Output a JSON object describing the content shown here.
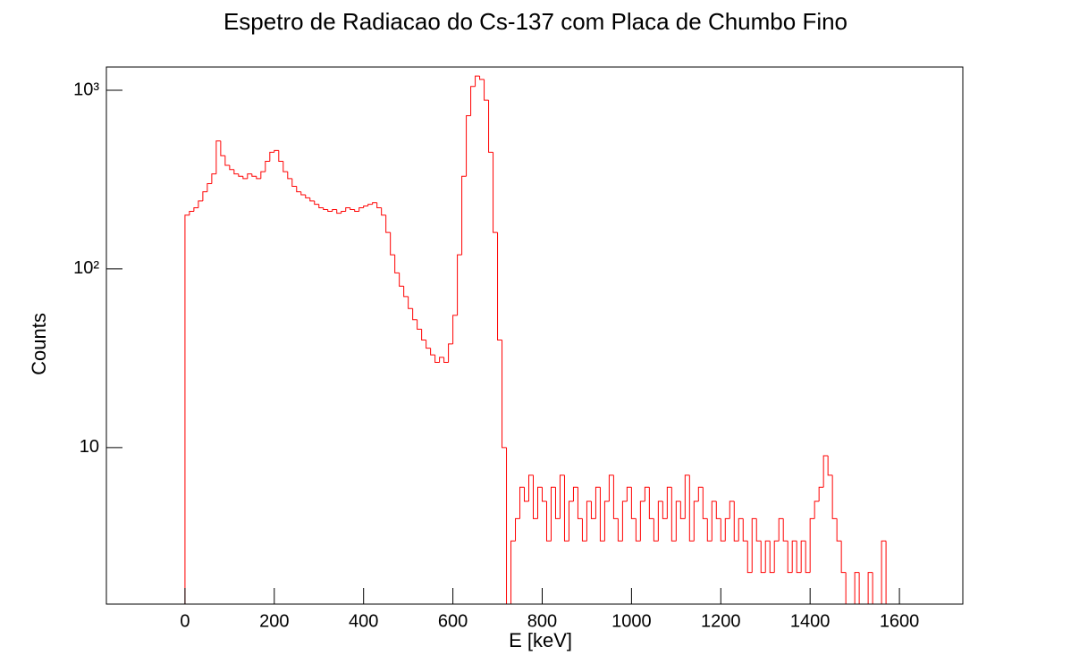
{
  "chart_data": {
    "type": "histogram",
    "title": "Espetro de Radiacao do Cs-137 com Placa de Chumbo Fino",
    "xlabel": "E [keV]",
    "ylabel": "Counts",
    "color": "#ff0000",
    "log_y": true,
    "xlim": [
      -176,
      1742
    ],
    "ylim": [
      1.33,
      1349
    ],
    "xticks": [
      0,
      200,
      400,
      600,
      800,
      1000,
      1200,
      1400,
      1600
    ],
    "yticks": [
      10,
      {
        "value": 100,
        "label": "10²"
      },
      {
        "value": 1000,
        "label": "10³"
      }
    ],
    "bins": [
      0,
      10,
      20,
      30,
      40,
      50,
      60,
      70,
      80,
      90,
      100,
      110,
      120,
      130,
      140,
      150,
      160,
      170,
      180,
      190,
      200,
      210,
      220,
      230,
      240,
      250,
      260,
      270,
      280,
      290,
      300,
      310,
      320,
      330,
      340,
      350,
      360,
      370,
      380,
      390,
      400,
      410,
      420,
      430,
      440,
      450,
      460,
      470,
      480,
      490,
      500,
      510,
      520,
      530,
      540,
      550,
      560,
      570,
      580,
      590,
      600,
      610,
      620,
      630,
      640,
      650,
      660,
      670,
      680,
      690,
      700,
      710,
      720,
      730,
      740,
      750,
      760,
      770,
      780,
      790,
      800,
      810,
      820,
      830,
      840,
      850,
      860,
      870,
      880,
      890,
      900,
      910,
      920,
      930,
      940,
      950,
      960,
      970,
      980,
      990,
      1000,
      1010,
      1020,
      1030,
      1040,
      1050,
      1060,
      1070,
      1080,
      1090,
      1100,
      1110,
      1120,
      1130,
      1140,
      1150,
      1160,
      1170,
      1180,
      1190,
      1200,
      1210,
      1220,
      1230,
      1240,
      1250,
      1260,
      1270,
      1280,
      1290,
      1300,
      1310,
      1320,
      1330,
      1340,
      1350,
      1360,
      1370,
      1380,
      1390,
      1400,
      1410,
      1420,
      1430,
      1440,
      1450,
      1460,
      1470,
      1480,
      1490,
      1500,
      1510,
      1520,
      1530,
      1540,
      1550,
      1560,
      1570,
      1580,
      1590,
      1600
    ],
    "values": [
      200,
      210,
      220,
      240,
      270,
      300,
      340,
      520,
      430,
      380,
      360,
      340,
      330,
      320,
      340,
      330,
      320,
      350,
      400,
      450,
      460,
      400,
      350,
      320,
      290,
      270,
      260,
      250,
      240,
      230,
      220,
      215,
      210,
      215,
      205,
      210,
      220,
      215,
      210,
      220,
      225,
      230,
      235,
      220,
      200,
      160,
      120,
      95,
      80,
      70,
      60,
      52,
      46,
      40,
      36,
      33,
      30,
      32,
      30,
      38,
      55,
      120,
      330,
      720,
      1050,
      1200,
      1150,
      880,
      450,
      160,
      40,
      10,
      1,
      3,
      4,
      6,
      5,
      7,
      4,
      6,
      5,
      3,
      6,
      4,
      7,
      3,
      5,
      6,
      4,
      3,
      5,
      4,
      6,
      3,
      5,
      7,
      4,
      3,
      5,
      6,
      4,
      3,
      5,
      6,
      4,
      3,
      5,
      4,
      6,
      3,
      5,
      4,
      7,
      3,
      5,
      6,
      4,
      3,
      5,
      4,
      3,
      4,
      5,
      3,
      4,
      3,
      2,
      4,
      3,
      2,
      3,
      2,
      3,
      4,
      3,
      2,
      3,
      2,
      3,
      2,
      4,
      5,
      6,
      9,
      7,
      4,
      3,
      2,
      1,
      1,
      2,
      1,
      1,
      2,
      1,
      1,
      3,
      1,
      1,
      1
    ]
  }
}
